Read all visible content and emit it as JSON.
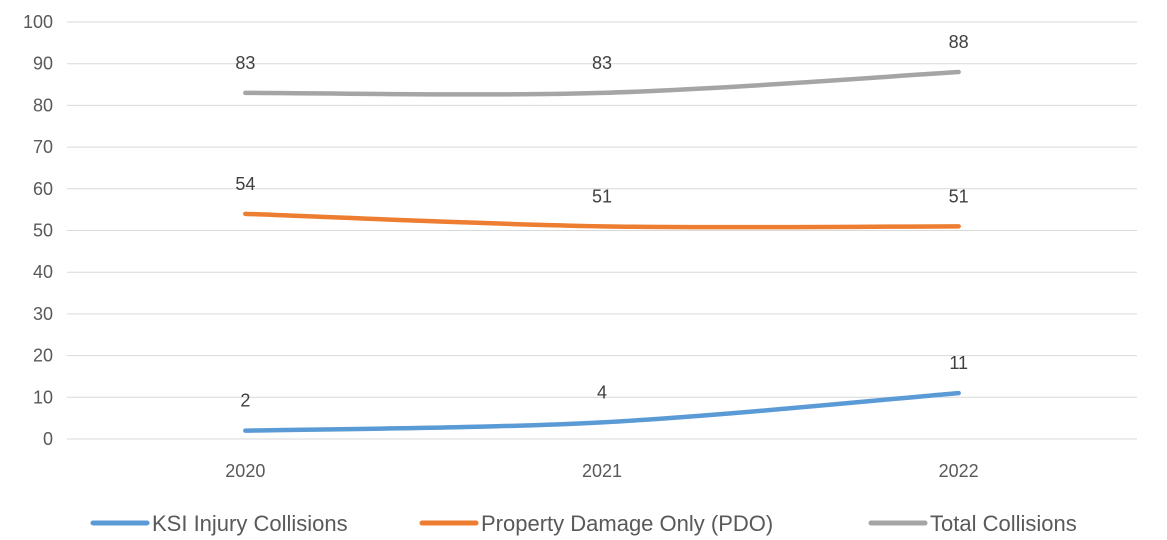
{
  "chart_data": {
    "type": "line",
    "categories": [
      "2020",
      "2021",
      "2022"
    ],
    "ylim": [
      0,
      100
    ],
    "yticks": [
      0,
      10,
      20,
      30,
      40,
      50,
      60,
      70,
      80,
      90,
      100
    ],
    "grid": "horizontal",
    "legend_position": "bottom",
    "smoothed": true,
    "series": [
      {
        "name": "KSI Injury Collisions",
        "values": [
          2,
          4,
          11
        ],
        "color": "#5b9bd5"
      },
      {
        "name": "Property Damage Only (PDO)",
        "values": [
          54,
          51,
          51
        ],
        "color": "#ed7d31"
      },
      {
        "name": "Total Collisions",
        "values": [
          83,
          83,
          88
        ],
        "color": "#a5a5a5"
      }
    ],
    "data_labels": true
  },
  "colors": {
    "gridline": "#d9d9d9",
    "tick_text": "#595959",
    "label_text": "#404040"
  }
}
